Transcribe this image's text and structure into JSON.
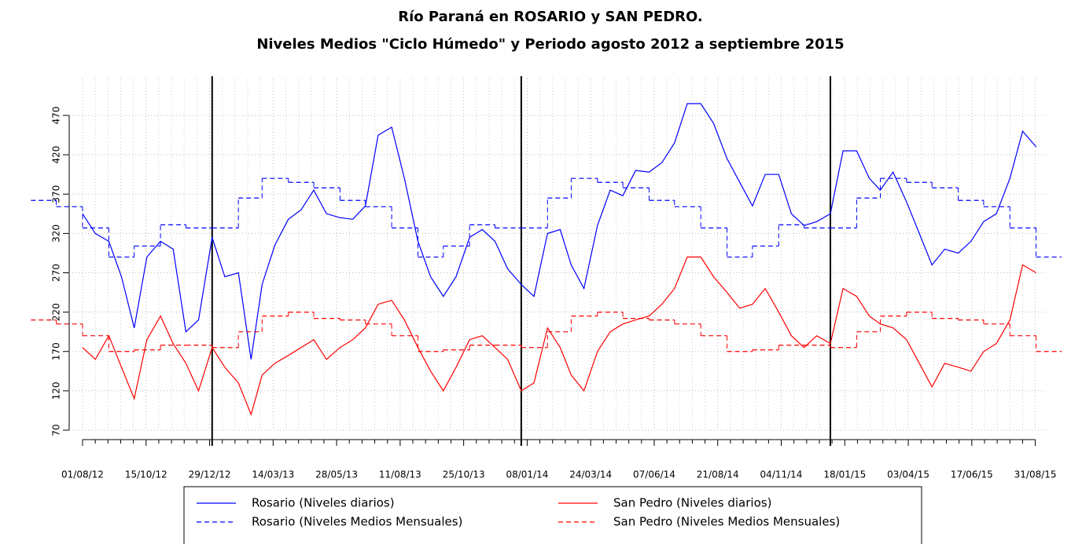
{
  "chart_data": {
    "type": "line",
    "title": "Río Paraná en ROSARIO y SAN PEDRO.",
    "subtitle": "Niveles Medios \"Ciclo Húmedo\" y Periodo agosto 2012 a septiembre 2015",
    "xlim": [
      "2012-06-01",
      "2015-10-01"
    ],
    "xticks": [
      {
        "value": "2012-08-01",
        "label": "01/08/12"
      },
      {
        "value": "2012-10-15",
        "label": "15/10/12"
      },
      {
        "value": "2012-12-29",
        "label": "29/12/12"
      },
      {
        "value": "2013-03-14",
        "label": "14/03/13"
      },
      {
        "value": "2013-05-28",
        "label": "28/05/13"
      },
      {
        "value": "2013-08-11",
        "label": "11/08/13"
      },
      {
        "value": "2013-10-25",
        "label": "25/10/13"
      },
      {
        "value": "2014-01-08",
        "label": "08/01/14"
      },
      {
        "value": "2014-03-24",
        "label": "24/03/14"
      },
      {
        "value": "2014-06-07",
        "label": "07/06/14"
      },
      {
        "value": "2014-08-21",
        "label": "21/08/14"
      },
      {
        "value": "2014-11-04",
        "label": "04/11/14"
      },
      {
        "value": "2015-01-18",
        "label": "18/01/15"
      },
      {
        "value": "2015-04-03",
        "label": "03/04/15"
      },
      {
        "value": "2015-06-17",
        "label": "17/06/15"
      },
      {
        "value": "2015-08-31",
        "label": "31/08/15"
      }
    ],
    "ylim": [
      70,
      470
    ],
    "yticks": [
      70,
      120,
      170,
      220,
      270,
      320,
      370,
      420,
      470
    ],
    "grid": true,
    "vlines": [
      "2013-01-01",
      "2014-01-01",
      "2015-01-01"
    ],
    "series": [
      {
        "name": "Rosario (Niveles diarios)",
        "color": "#0000ff",
        "style": "solid",
        "x": [
          "2012-08-01",
          "2012-08-16",
          "2012-09-01",
          "2012-09-16",
          "2012-10-01",
          "2012-10-16",
          "2012-11-01",
          "2012-11-16",
          "2012-12-01",
          "2012-12-16",
          "2013-01-01",
          "2013-01-16",
          "2013-02-01",
          "2013-02-16",
          "2013-03-01",
          "2013-03-16",
          "2013-04-01",
          "2013-04-16",
          "2013-05-01",
          "2013-05-16",
          "2013-06-01",
          "2013-06-16",
          "2013-07-01",
          "2013-07-16",
          "2013-08-01",
          "2013-08-16",
          "2013-09-01",
          "2013-09-16",
          "2013-10-01",
          "2013-10-16",
          "2013-11-01",
          "2013-11-16",
          "2013-12-01",
          "2013-12-16",
          "2014-01-01",
          "2014-01-16",
          "2014-02-01",
          "2014-02-16",
          "2014-03-01",
          "2014-03-16",
          "2014-04-01",
          "2014-04-16",
          "2014-05-01",
          "2014-05-16",
          "2014-06-01",
          "2014-06-16",
          "2014-07-01",
          "2014-07-16",
          "2014-08-01",
          "2014-08-16",
          "2014-09-01",
          "2014-09-16",
          "2014-10-01",
          "2014-10-16",
          "2014-11-01",
          "2014-11-16",
          "2014-12-01",
          "2014-12-16",
          "2015-01-01",
          "2015-01-16",
          "2015-02-01",
          "2015-02-16",
          "2015-03-01",
          "2015-03-16",
          "2015-04-01",
          "2015-04-16",
          "2015-05-01",
          "2015-05-16",
          "2015-06-01",
          "2015-06-16",
          "2015-07-01",
          "2015-07-16",
          "2015-08-01",
          "2015-08-16",
          "2015-09-01"
        ],
        "values": [
          345,
          320,
          310,
          265,
          200,
          290,
          310,
          300,
          195,
          210,
          315,
          265,
          270,
          160,
          255,
          305,
          338,
          350,
          375,
          345,
          340,
          338,
          355,
          445,
          455,
          390,
          310,
          265,
          240,
          265,
          315,
          325,
          310,
          275,
          255,
          240,
          320,
          325,
          280,
          250,
          330,
          375,
          368,
          400,
          398,
          410,
          435,
          485,
          485,
          460,
          415,
          385,
          355,
          395,
          395,
          345,
          330,
          335,
          345,
          425,
          425,
          390,
          375,
          398,
          360,
          320,
          280,
          300,
          295,
          310,
          335,
          345,
          390,
          450,
          430
        ]
      },
      {
        "name": "San Pedro (Niveles diarios)",
        "color": "#ff0000",
        "style": "solid",
        "x": [
          "2012-08-01",
          "2012-08-16",
          "2012-09-01",
          "2012-09-16",
          "2012-10-01",
          "2012-10-16",
          "2012-11-01",
          "2012-11-16",
          "2012-12-01",
          "2012-12-16",
          "2013-01-01",
          "2013-01-16",
          "2013-02-01",
          "2013-02-16",
          "2013-03-01",
          "2013-03-16",
          "2013-04-01",
          "2013-04-16",
          "2013-05-01",
          "2013-05-16",
          "2013-06-01",
          "2013-06-16",
          "2013-07-01",
          "2013-07-16",
          "2013-08-01",
          "2013-08-16",
          "2013-09-01",
          "2013-09-16",
          "2013-10-01",
          "2013-10-16",
          "2013-11-01",
          "2013-11-16",
          "2013-12-01",
          "2013-12-16",
          "2014-01-01",
          "2014-01-16",
          "2014-02-01",
          "2014-02-16",
          "2014-03-01",
          "2014-03-16",
          "2014-04-01",
          "2014-04-16",
          "2014-05-01",
          "2014-05-16",
          "2014-06-01",
          "2014-06-16",
          "2014-07-01",
          "2014-07-16",
          "2014-08-01",
          "2014-08-16",
          "2014-09-01",
          "2014-09-16",
          "2014-10-01",
          "2014-10-16",
          "2014-11-01",
          "2014-11-16",
          "2014-12-01",
          "2014-12-16",
          "2015-01-01",
          "2015-01-16",
          "2015-02-01",
          "2015-02-16",
          "2015-03-01",
          "2015-03-16",
          "2015-04-01",
          "2015-04-16",
          "2015-05-01",
          "2015-05-16",
          "2015-06-01",
          "2015-06-16",
          "2015-07-01",
          "2015-07-16",
          "2015-08-01",
          "2015-08-16",
          "2015-09-01"
        ],
        "values": [
          175,
          160,
          190,
          150,
          110,
          185,
          215,
          180,
          155,
          120,
          175,
          150,
          130,
          90,
          140,
          155,
          165,
          175,
          185,
          160,
          175,
          185,
          200,
          230,
          235,
          210,
          175,
          145,
          120,
          150,
          185,
          190,
          175,
          160,
          120,
          130,
          200,
          175,
          140,
          120,
          170,
          195,
          205,
          210,
          215,
          230,
          250,
          290,
          290,
          265,
          245,
          225,
          230,
          250,
          220,
          190,
          175,
          190,
          180,
          250,
          240,
          215,
          205,
          200,
          185,
          155,
          125,
          155,
          150,
          145,
          170,
          180,
          210,
          280,
          270
        ]
      },
      {
        "name": "Rosario (Niveles Medios Mensuales)",
        "color": "#0000ff",
        "style": "dashed",
        "x": [
          "2012-06-01",
          "2012-07-01",
          "2012-08-01",
          "2012-09-01",
          "2012-10-01",
          "2012-11-01",
          "2012-12-01",
          "2013-01-01",
          "2013-02-01",
          "2013-03-01",
          "2013-04-01",
          "2013-05-01",
          "2013-06-01",
          "2013-07-01",
          "2013-08-01",
          "2013-09-01",
          "2013-10-01",
          "2013-11-01",
          "2013-12-01",
          "2014-01-01",
          "2014-02-01",
          "2014-03-01",
          "2014-04-01",
          "2014-05-01",
          "2014-06-01",
          "2014-07-01",
          "2014-08-01",
          "2014-09-01",
          "2014-10-01",
          "2014-11-01",
          "2014-12-01",
          "2015-01-01",
          "2015-02-01",
          "2015-03-01",
          "2015-04-01",
          "2015-05-01",
          "2015-06-01",
          "2015-07-01",
          "2015-08-01",
          "2015-09-01"
        ],
        "values": [
          362,
          354,
          327,
          290,
          304,
          331,
          327,
          327,
          365,
          390,
          385,
          378,
          362,
          354,
          327,
          290,
          304,
          331,
          327,
          327,
          365,
          390,
          385,
          378,
          362,
          354,
          327,
          290,
          304,
          331,
          327,
          327,
          365,
          390,
          385,
          378,
          362,
          354,
          327,
          290
        ]
      },
      {
        "name": "San Pedro (Niveles Medios Mensuales)",
        "color": "#ff0000",
        "style": "dashed",
        "x": [
          "2012-06-01",
          "2012-07-01",
          "2012-08-01",
          "2012-09-01",
          "2012-10-01",
          "2012-11-01",
          "2012-12-01",
          "2013-01-01",
          "2013-02-01",
          "2013-03-01",
          "2013-04-01",
          "2013-05-01",
          "2013-06-01",
          "2013-07-01",
          "2013-08-01",
          "2013-09-01",
          "2013-10-01",
          "2013-11-01",
          "2013-12-01",
          "2014-01-01",
          "2014-02-01",
          "2014-03-01",
          "2014-04-01",
          "2014-05-01",
          "2014-06-01",
          "2014-07-01",
          "2014-08-01",
          "2014-09-01",
          "2014-10-01",
          "2014-11-01",
          "2014-12-01",
          "2015-01-01",
          "2015-02-01",
          "2015-03-01",
          "2015-04-01",
          "2015-05-01",
          "2015-06-01",
          "2015-07-01",
          "2015-08-01",
          "2015-09-01"
        ],
        "values": [
          210,
          205,
          190,
          170,
          172,
          178,
          178,
          175,
          195,
          215,
          220,
          212,
          210,
          205,
          190,
          170,
          172,
          178,
          178,
          175,
          195,
          215,
          220,
          212,
          210,
          205,
          190,
          170,
          172,
          178,
          178,
          175,
          195,
          215,
          220,
          212,
          210,
          205,
          190,
          170
        ]
      }
    ]
  }
}
